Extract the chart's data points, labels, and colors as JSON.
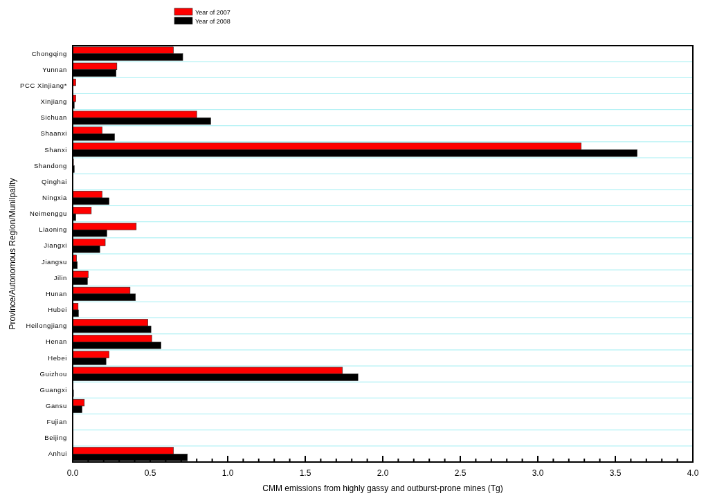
{
  "chart_data": {
    "type": "bar",
    "orientation": "horizontal",
    "xlabel": "CMM emissions from highly gassy and outburst-prone mines (Tg)",
    "ylabel": "Province/Autonomous Region/Munilpality",
    "categories": [
      "Chongqing",
      "Yunnan",
      "PCC Xinjiang*",
      "Xinjiang",
      "Sichuan",
      "Shaanxi",
      "Shanxi",
      "Shandong",
      "Qinghai",
      "Ningxia",
      "Neimenggu",
      "Liaoning",
      "Jiangxi",
      "Jiangsu",
      "Jilin",
      "Hunan",
      "Hubei",
      "Heilongjiang",
      "Henan",
      "Hebei",
      "Guizhou",
      "Guangxi",
      "Gansu",
      "Fujian",
      "Beijing",
      "Anhui"
    ],
    "series": [
      {
        "name": "Year of 2007",
        "color": "#ff0000",
        "values": [
          0.65,
          0.285,
          0.02,
          0.02,
          0.8,
          0.19,
          3.28,
          0.005,
          0,
          0.19,
          0.12,
          0.41,
          0.21,
          0.025,
          0.1,
          0.37,
          0.035,
          0.485,
          0.51,
          0.235,
          1.74,
          0,
          0.075,
          0,
          0,
          0.65
        ]
      },
      {
        "name": "Year of 2008",
        "color": "#000000",
        "values": [
          0.71,
          0.28,
          0,
          0.01,
          0.89,
          0.27,
          3.64,
          0.01,
          0,
          0.235,
          0.02,
          0.22,
          0.175,
          0.03,
          0.095,
          0.405,
          0.037,
          0.505,
          0.57,
          0.215,
          1.84,
          0.005,
          0.06,
          0,
          0,
          0.74
        ]
      }
    ],
    "xlim": [
      0,
      4
    ],
    "xticks": [
      {
        "value": 0,
        "label": "0.0"
      },
      {
        "value": 0.1,
        "label": null
      },
      {
        "value": 0.2,
        "label": null
      },
      {
        "value": 0.3,
        "label": null
      },
      {
        "value": 0.4,
        "label": null
      },
      {
        "value": 0.5,
        "label": "0.5"
      },
      {
        "value": 0.6,
        "label": null
      },
      {
        "value": 0.7,
        "label": null
      },
      {
        "value": 0.8,
        "label": null
      },
      {
        "value": 0.9,
        "label": null
      },
      {
        "value": 1,
        "label": "1.0"
      },
      {
        "value": 1.1,
        "label": null
      },
      {
        "value": 1.2,
        "label": null
      },
      {
        "value": 1.3,
        "label": null
      },
      {
        "value": 1.4,
        "label": null
      },
      {
        "value": 1.5,
        "label": "1.5"
      },
      {
        "value": 1.6,
        "label": null
      },
      {
        "value": 1.7,
        "label": null
      },
      {
        "value": 1.8,
        "label": null
      },
      {
        "value": 1.9,
        "label": null
      },
      {
        "value": 2,
        "label": "2.0"
      },
      {
        "value": 2.1,
        "label": null
      },
      {
        "value": 2.2,
        "label": null
      },
      {
        "value": 2.3,
        "label": null
      },
      {
        "value": 2.4,
        "label": null
      },
      {
        "value": 2.5,
        "label": "2.5"
      },
      {
        "value": 2.6,
        "label": null
      },
      {
        "value": 2.7,
        "label": null
      },
      {
        "value": 2.8,
        "label": null
      },
      {
        "value": 2.9,
        "label": null
      },
      {
        "value": 3,
        "label": "3.0"
      },
      {
        "value": 3.1,
        "label": null
      },
      {
        "value": 3.2,
        "label": null
      },
      {
        "value": 3.3,
        "label": null
      },
      {
        "value": 3.4,
        "label": null
      },
      {
        "value": 3.5,
        "label": "3.5"
      },
      {
        "value": 3.6,
        "label": null
      },
      {
        "value": 3.7,
        "label": null
      },
      {
        "value": 3.8,
        "label": null
      },
      {
        "value": 3.9,
        "label": null
      },
      {
        "value": 4,
        "label": "4.0"
      }
    ],
    "grid": "y",
    "legend": "top"
  }
}
